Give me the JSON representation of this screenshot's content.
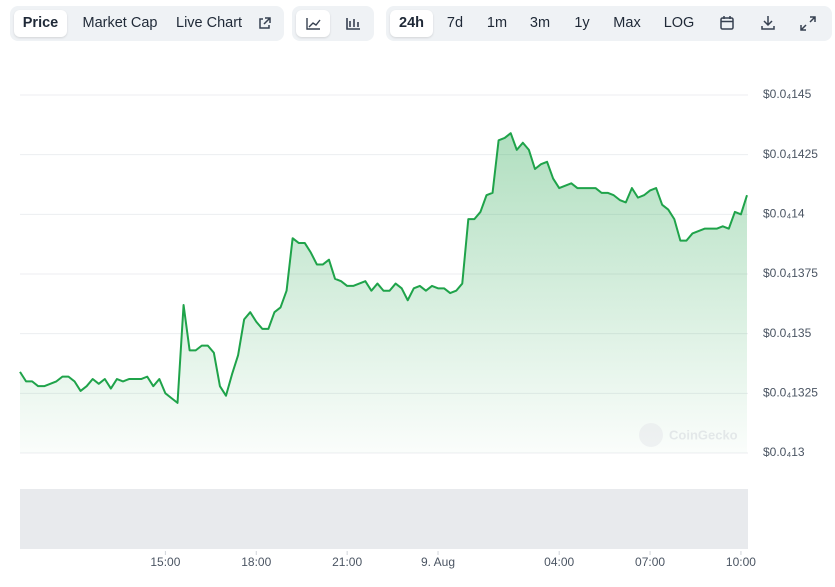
{
  "toolbar": {
    "tabs": [
      "Price",
      "Market Cap",
      "Live Chart"
    ],
    "ranges": [
      "24h",
      "7d",
      "1m",
      "3m",
      "1y",
      "Max",
      "LOG"
    ]
  },
  "chart_data": {
    "type": "line",
    "watermark": "CoinGecko",
    "color": "#1fa34a",
    "grid": true,
    "xlim": [
      10.2,
      34.2
    ],
    "xticks": [
      {
        "value": 15,
        "label": "15:00"
      },
      {
        "value": 18,
        "label": "18:00"
      },
      {
        "value": 21,
        "label": "21:00"
      },
      {
        "value": 24,
        "label": "9. Aug"
      },
      {
        "value": 28,
        "label": "04:00"
      },
      {
        "value": 31,
        "label": "07:00"
      },
      {
        "value": 34,
        "label": "10:00"
      }
    ],
    "ylim": [
      1.3e-05,
      1.45e-05
    ],
    "yticks": [
      {
        "value": 1.3e-05,
        "label": "$0.0₄13"
      },
      {
        "value": 1.325e-05,
        "label": "$0.0₄1325"
      },
      {
        "value": 1.35e-05,
        "label": "$0.0₄135"
      },
      {
        "value": 1.375e-05,
        "label": "$0.0₄1375"
      },
      {
        "value": 1.4e-05,
        "label": "$0.0₄14"
      },
      {
        "value": 1.425e-05,
        "label": "$0.0₄1425"
      },
      {
        "value": 1.45e-05,
        "label": "$0.0₄145"
      }
    ],
    "x": [
      10.2,
      10.4,
      10.6,
      10.8,
      11.0,
      11.2,
      11.4,
      11.6,
      11.8,
      12.0,
      12.2,
      12.4,
      12.6,
      12.8,
      13.0,
      13.2,
      13.4,
      13.6,
      13.8,
      14.0,
      14.2,
      14.4,
      14.6,
      14.8,
      15.0,
      15.2,
      15.4,
      15.6,
      15.8,
      16.0,
      16.2,
      16.4,
      16.6,
      16.8,
      17.0,
      17.2,
      17.4,
      17.6,
      17.8,
      18.0,
      18.2,
      18.4,
      18.6,
      18.8,
      19.0,
      19.2,
      19.4,
      19.6,
      19.8,
      20.0,
      20.2,
      20.4,
      20.6,
      20.8,
      21.0,
      21.2,
      21.4,
      21.6,
      21.8,
      22.0,
      22.2,
      22.4,
      22.6,
      22.8,
      23.0,
      23.2,
      23.4,
      23.6,
      23.8,
      24.0,
      24.2,
      24.4,
      24.6,
      24.8,
      25.0,
      25.2,
      25.4,
      25.6,
      25.8,
      26.0,
      26.2,
      26.4,
      26.6,
      26.8,
      27.0,
      27.2,
      27.4,
      27.6,
      27.8,
      28.0,
      28.2,
      28.4,
      28.6,
      28.8,
      29.0,
      29.2,
      29.4,
      29.6,
      29.8,
      30.0,
      30.2,
      30.4,
      30.6,
      30.8,
      31.0,
      31.2,
      31.4,
      31.6,
      31.8,
      32.0,
      32.2,
      32.4,
      32.6,
      32.8,
      33.0,
      33.2,
      33.4,
      33.6,
      33.8,
      34.0,
      34.2
    ],
    "values": [
      1.334e-05,
      1.33e-05,
      1.33e-05,
      1.328e-05,
      1.328e-05,
      1.329e-05,
      1.33e-05,
      1.332e-05,
      1.332e-05,
      1.33e-05,
      1.326e-05,
      1.328e-05,
      1.331e-05,
      1.329e-05,
      1.331e-05,
      1.327e-05,
      1.331e-05,
      1.33e-05,
      1.331e-05,
      1.331e-05,
      1.331e-05,
      1.332e-05,
      1.328e-05,
      1.331e-05,
      1.325e-05,
      1.323e-05,
      1.321e-05,
      1.362e-05,
      1.343e-05,
      1.343e-05,
      1.345e-05,
      1.345e-05,
      1.342e-05,
      1.328e-05,
      1.324e-05,
      1.333e-05,
      1.341e-05,
      1.356e-05,
      1.359e-05,
      1.355e-05,
      1.352e-05,
      1.352e-05,
      1.359e-05,
      1.361e-05,
      1.368e-05,
      1.39e-05,
      1.388e-05,
      1.388e-05,
      1.384e-05,
      1.379e-05,
      1.379e-05,
      1.381e-05,
      1.373e-05,
      1.372e-05,
      1.37e-05,
      1.37e-05,
      1.371e-05,
      1.372e-05,
      1.368e-05,
      1.371e-05,
      1.368e-05,
      1.368e-05,
      1.371e-05,
      1.369e-05,
      1.364e-05,
      1.369e-05,
      1.37e-05,
      1.368e-05,
      1.37e-05,
      1.369e-05,
      1.369e-05,
      1.367e-05,
      1.368e-05,
      1.371e-05,
      1.398e-05,
      1.398e-05,
      1.401e-05,
      1.408e-05,
      1.409e-05,
      1.431e-05,
      1.432e-05,
      1.434e-05,
      1.427e-05,
      1.43e-05,
      1.427e-05,
      1.419e-05,
      1.421e-05,
      1.422e-05,
      1.415e-05,
      1.411e-05,
      1.412e-05,
      1.413e-05,
      1.411e-05,
      1.411e-05,
      1.411e-05,
      1.411e-05,
      1.409e-05,
      1.409e-05,
      1.408e-05,
      1.406e-05,
      1.405e-05,
      1.411e-05,
      1.407e-05,
      1.408e-05,
      1.41e-05,
      1.411e-05,
      1.404e-05,
      1.402e-05,
      1.398e-05,
      1.389e-05,
      1.389e-05,
      1.392e-05,
      1.393e-05,
      1.394e-05,
      1.394e-05,
      1.394e-05,
      1.395e-05,
      1.394e-05,
      1.401e-05,
      1.4e-05,
      1.408e-05
    ]
  }
}
